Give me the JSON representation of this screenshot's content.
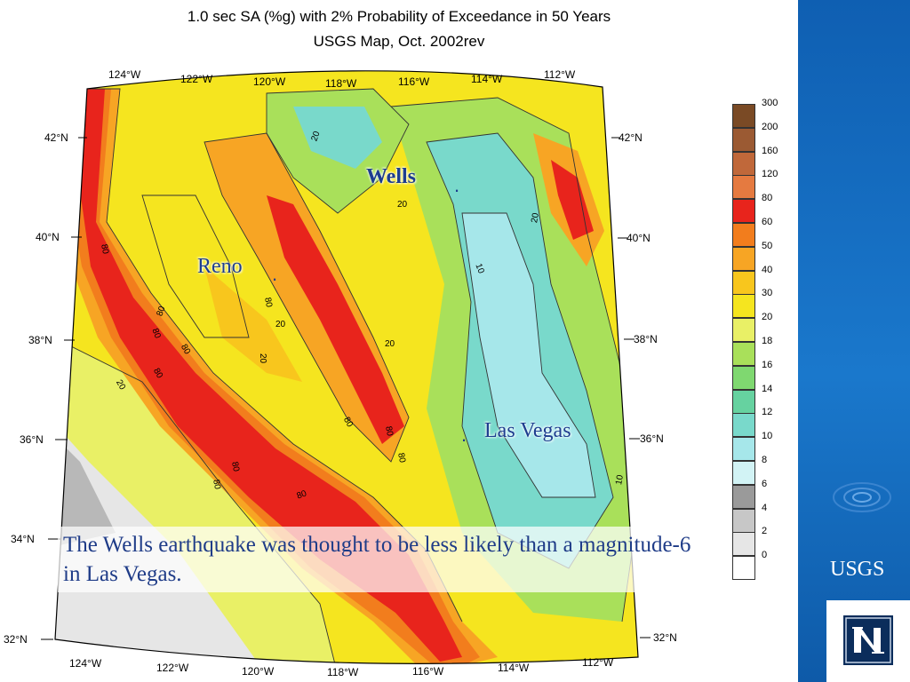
{
  "map": {
    "title_line1": "1.0 sec SA (%g) with 2% Probability of Exceedance in 50 Years",
    "title_line2": "USGS Map, Oct. 2002rev",
    "lon_labels": [
      "124°W",
      "122°W",
      "120°W",
      "118°W",
      "116°W",
      "114°W",
      "112°W"
    ],
    "lat_labels_left": [
      "42°N",
      "40°N",
      "38°N",
      "36°N",
      "34°N",
      "32°N"
    ],
    "lat_labels_right": [
      "42°N",
      "40°N",
      "38°N",
      "36°N",
      "32°N"
    ],
    "contour_labels": [
      "20",
      "20",
      "20",
      "20",
      "20",
      "20",
      "20",
      "10",
      "10",
      "80",
      "80",
      "80",
      "80",
      "80",
      "80",
      "80",
      "80",
      "80",
      "80",
      "80",
      "80"
    ],
    "cities": {
      "wells": "Wells",
      "reno": "Reno",
      "las_vegas": "Las Vegas"
    }
  },
  "legend": {
    "classes": [
      {
        "label": "300",
        "color": "#7a4a25"
      },
      {
        "label": "200",
        "color": "#9b5a33"
      },
      {
        "label": "160",
        "color": "#c0683a"
      },
      {
        "label": "120",
        "color": "#e57a40"
      },
      {
        "label": "80",
        "color": "#e8241c"
      },
      {
        "label": "60",
        "color": "#f27d1d"
      },
      {
        "label": "50",
        "color": "#f7a524"
      },
      {
        "label": "40",
        "color": "#f8c61d"
      },
      {
        "label": "30",
        "color": "#f5e51f"
      },
      {
        "label": "20",
        "color": "#e9f066"
      },
      {
        "label": "18",
        "color": "#a9e05a"
      },
      {
        "label": "16",
        "color": "#7fd870"
      },
      {
        "label": "14",
        "color": "#66d2a0"
      },
      {
        "label": "12",
        "color": "#79d9cb"
      },
      {
        "label": "10",
        "color": "#a6e7ea"
      },
      {
        "label": "8",
        "color": "#d2f3f5"
      },
      {
        "label": "6",
        "color": "#9a9a9a"
      },
      {
        "label": "4",
        "color": "#c7c7c7"
      },
      {
        "label": "2",
        "color": "#e6e6e6"
      },
      {
        "label": "0",
        "color": "#ffffff"
      }
    ]
  },
  "caption": {
    "text": "The  Wells earthquake was thought to be less likely than a magnitude-6 in Las Vegas."
  },
  "sidebar": {
    "label": "USGS"
  }
}
